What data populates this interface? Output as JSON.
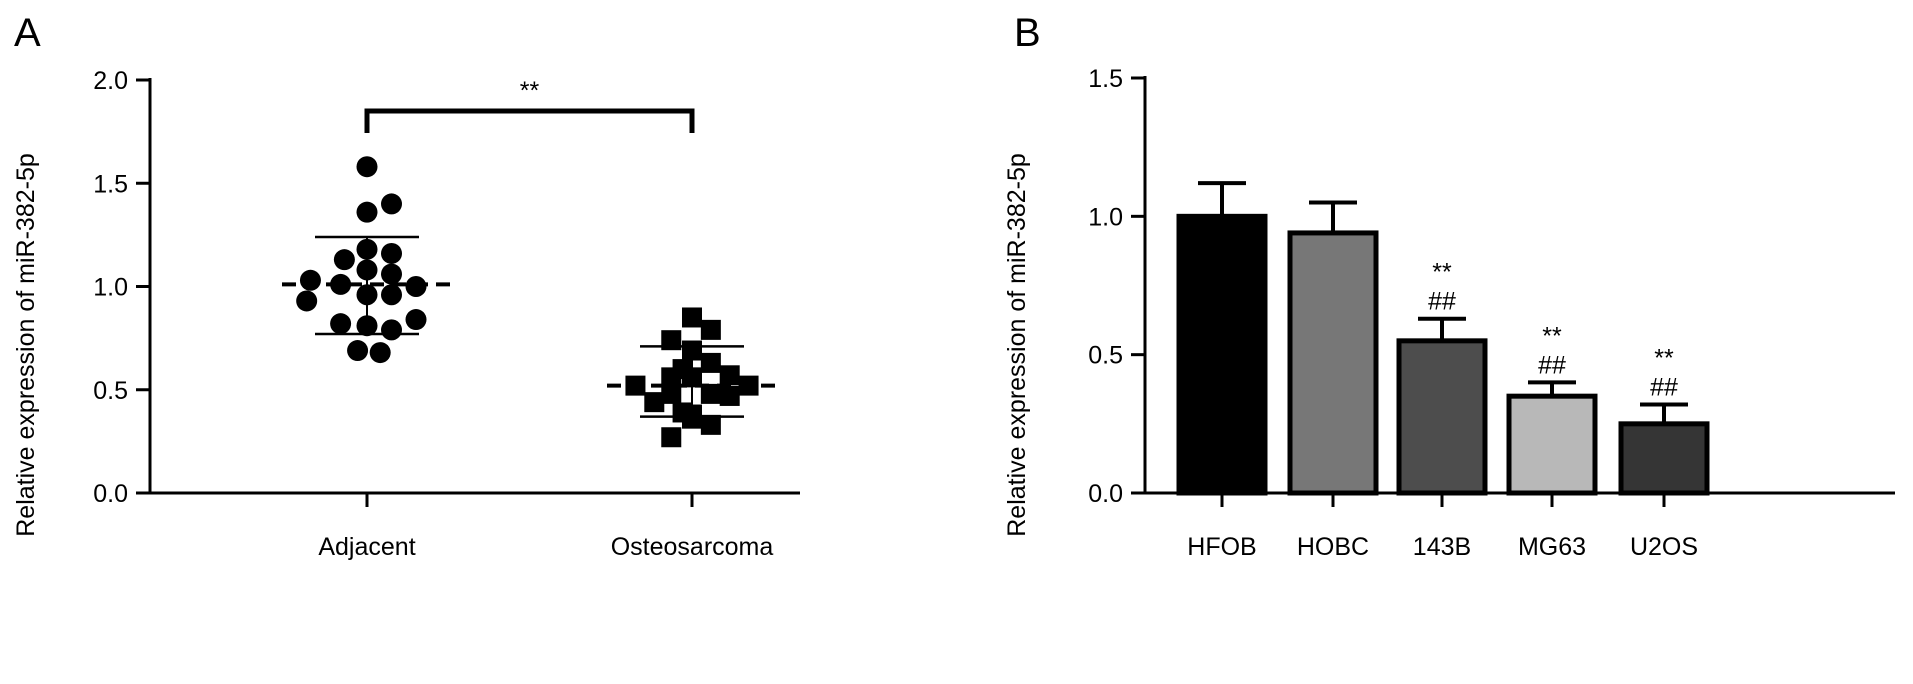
{
  "chart_data": [
    {
      "panel": "A",
      "type": "scatter",
      "ylabel": "Relative expression of miR-382-5p",
      "ylim": [
        0,
        2.0
      ],
      "yticks": [
        "0.0",
        "0.5",
        "1.0",
        "1.5",
        "2.0"
      ],
      "categories": [
        "Adjacent",
        "Osteosarcoma"
      ],
      "significance": "**",
      "series": [
        {
          "category": "Adjacent",
          "marker": "circle",
          "mean": 1.01,
          "sd_upper": 1.24,
          "sd_lower": 0.77,
          "points": [
            [
              -0.3,
              1.03
            ],
            [
              -0.32,
              0.93
            ],
            [
              -0.12,
              1.13
            ],
            [
              -0.14,
              1.01
            ],
            [
              -0.14,
              0.82
            ],
            [
              -0.05,
              0.69
            ],
            [
              0.0,
              1.58
            ],
            [
              0.0,
              1.36
            ],
            [
              0.0,
              1.18
            ],
            [
              0.0,
              1.08
            ],
            [
              0.0,
              0.96
            ],
            [
              0.0,
              0.81
            ],
            [
              0.07,
              0.68
            ],
            [
              0.13,
              1.4
            ],
            [
              0.13,
              1.16
            ],
            [
              0.13,
              1.06
            ],
            [
              0.13,
              0.96
            ],
            [
              0.13,
              0.79
            ],
            [
              0.26,
              1.0
            ],
            [
              0.26,
              0.84
            ]
          ]
        },
        {
          "category": "Osteosarcoma",
          "marker": "square",
          "mean": 0.52,
          "sd_upper": 0.71,
          "sd_lower": 0.37,
          "points": [
            [
              -0.11,
              0.27
            ],
            [
              -0.11,
              0.48
            ],
            [
              -0.11,
              0.74
            ],
            [
              -0.11,
              0.56
            ],
            [
              -0.05,
              0.39
            ],
            [
              -0.05,
              0.6
            ],
            [
              -0.3,
              0.52
            ],
            [
              -0.2,
              0.44
            ],
            [
              0.0,
              0.85
            ],
            [
              0.0,
              0.69
            ],
            [
              0.0,
              0.56
            ],
            [
              0.0,
              0.38
            ],
            [
              0.0,
              0.36
            ],
            [
              0.1,
              0.63
            ],
            [
              0.1,
              0.48
            ],
            [
              0.1,
              0.33
            ],
            [
              0.1,
              0.79
            ],
            [
              0.2,
              0.47
            ],
            [
              0.2,
              0.57
            ],
            [
              0.3,
              0.52
            ]
          ]
        }
      ]
    },
    {
      "panel": "B",
      "type": "bar",
      "ylabel": "Relative expression of miR-382-5p",
      "ylim": [
        0,
        1.5
      ],
      "yticks": [
        "0.0",
        "0.5",
        "1.0",
        "1.5"
      ],
      "categories": [
        "HFOB",
        "HOBC",
        "143B",
        "MG63",
        "U2OS"
      ],
      "values": [
        1.0,
        0.94,
        0.55,
        0.35,
        0.25
      ],
      "errors": [
        0.12,
        0.11,
        0.08,
        0.05,
        0.07
      ],
      "colors": [
        "#000000",
        "#777777",
        "#4d4d4d",
        "#b8b8b8",
        "#353535"
      ],
      "annotations": [
        {
          "category": "143B",
          "lines": [
            "**",
            "##"
          ]
        },
        {
          "category": "MG63",
          "lines": [
            "**",
            "##"
          ]
        },
        {
          "category": "U2OS",
          "lines": [
            "**",
            "##"
          ]
        }
      ]
    }
  ]
}
